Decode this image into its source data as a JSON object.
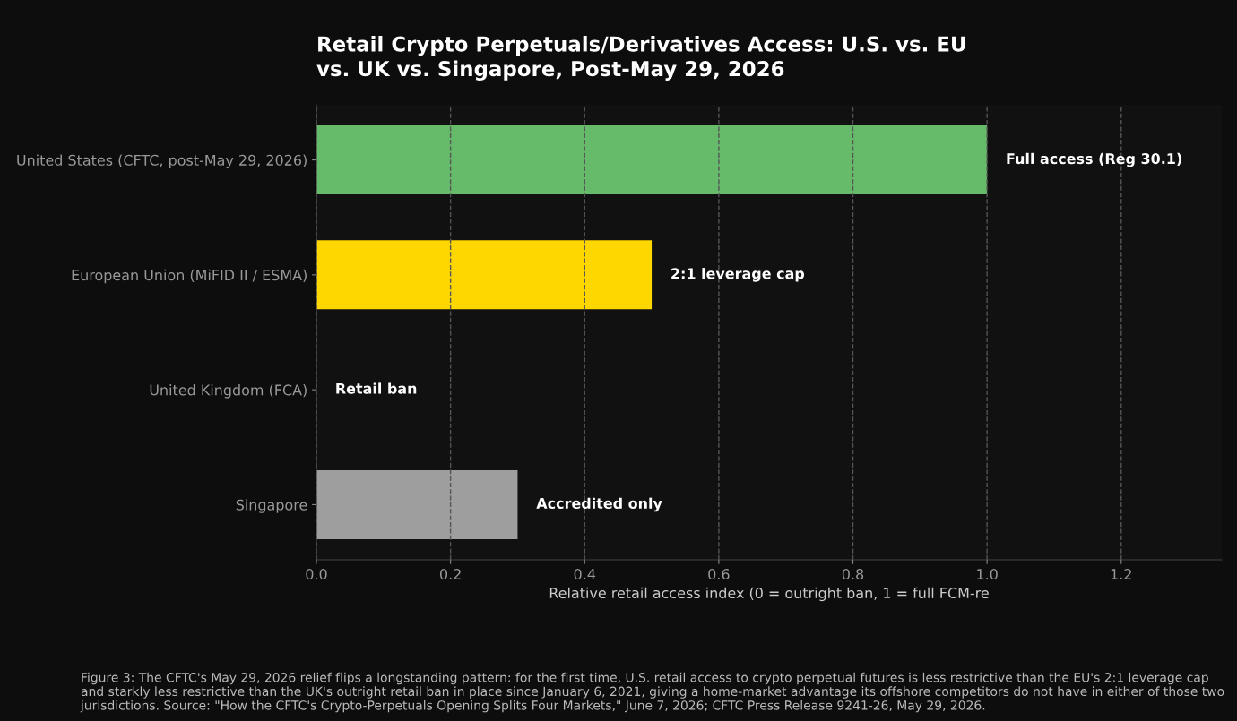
{
  "chart_data": {
    "type": "bar",
    "orientation": "horizontal",
    "title": "Retail Crypto Perpetuals/Derivatives Access: U.S. vs. EU\nvs. UK vs. Singapore, Post-May 29, 2026",
    "categories": [
      "United States (CFTC, post-May 29, 2026)",
      "European Union (MiFID II / ESMA)",
      "United Kingdom (FCA)",
      "Singapore"
    ],
    "values": [
      1.0,
      0.5,
      0,
      0.3
    ],
    "colors": [
      "#66bb6a",
      "#ffd700",
      "#e53935",
      "#9e9e9e"
    ],
    "value_labels": [
      "Full access (Reg 30.1)",
      "2:1 leverage cap",
      "Retail ban",
      "Accredited only"
    ],
    "xlabel": "Relative retail access index (0 = outright ban, 1 = full FCM-re",
    "xlim": [
      0,
      1.35
    ],
    "xticks": [
      {
        "value": 0,
        "label": "0.0"
      },
      0.2,
      0.4,
      0.6,
      0.8,
      {
        "value": 1,
        "label": "1.0"
      },
      1.2
    ],
    "grid": "x",
    "legend": false,
    "annotations": [
      "Figure 3: The CFTC's May 29, 2026 relief flips a longstanding pattern: for the first time, U.S. retail access to crypto perpetual futures is less restrictive than the EU's 2:1 leverage cap and starkly less restrictive than the UK's outright retail ban in place since January 6, 2021, giving a home-market advantage its offshore competitors do not have in either of those two jurisdictions. Source: \"How the CFTC's Crypto-Perpetuals Opening Splits Four Markets,\" June 7, 2026; CFTC Press Release 9241-26, May 29, 2026."
    ]
  }
}
